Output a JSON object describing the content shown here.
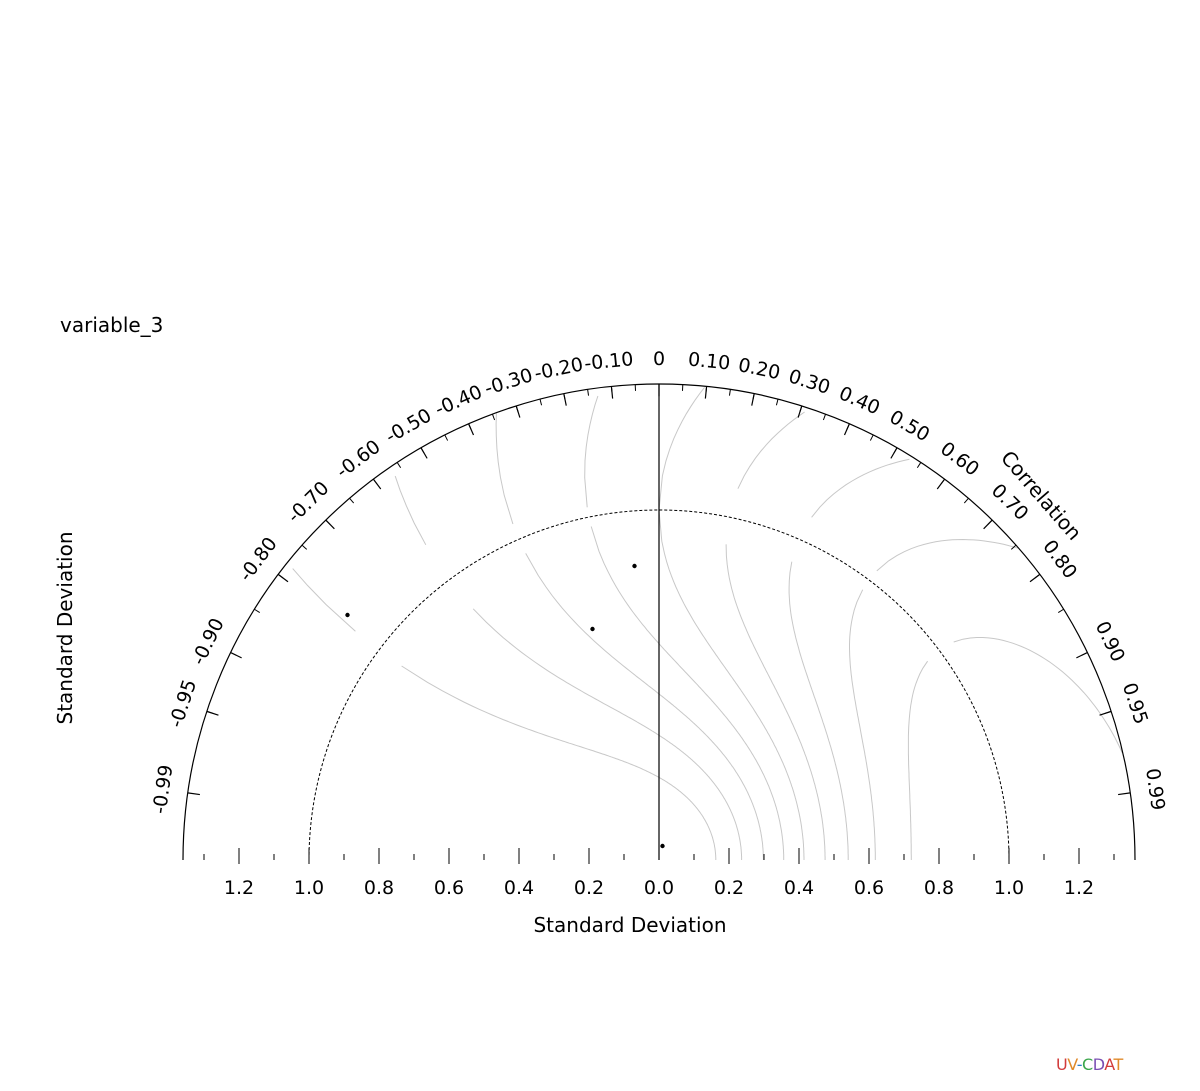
{
  "chart_data": {
    "type": "scatter",
    "subtype": "taylor-diagram",
    "title": "variable_3",
    "xlabel": "Standard Deviation",
    "ylabel": "Standard Deviation",
    "correlation_label": "Correlation",
    "std_max": 1.36,
    "reference_std": 1.0,
    "std_ticks": [
      0.2,
      0.4,
      0.6,
      0.8,
      1.0,
      1.2
    ],
    "std_tick_labels_negative": [
      "1.2",
      "1.0",
      "0.8",
      "0.6",
      "0.4",
      "0.2",
      "0.0"
    ],
    "std_tick_labels_positive": [
      "0.2",
      "0.4",
      "0.6",
      "0.8",
      "1.0",
      "1.2"
    ],
    "correlation_ticks": [
      {
        "value": -0.99,
        "label": "-0.99"
      },
      {
        "value": -0.95,
        "label": "-0.95"
      },
      {
        "value": -0.9,
        "label": "-0.90"
      },
      {
        "value": -0.8,
        "label": "-0.80"
      },
      {
        "value": -0.7,
        "label": "-0.70"
      },
      {
        "value": -0.6,
        "label": "-0.60"
      },
      {
        "value": -0.5,
        "label": "-0.50"
      },
      {
        "value": -0.4,
        "label": "-0.40"
      },
      {
        "value": -0.3,
        "label": "-0.30"
      },
      {
        "value": -0.2,
        "label": "-0.20"
      },
      {
        "value": -0.1,
        "label": "-0.10"
      },
      {
        "value": 0.0,
        "label": "0"
      },
      {
        "value": 0.1,
        "label": "0.10"
      },
      {
        "value": 0.2,
        "label": "0.20"
      },
      {
        "value": 0.3,
        "label": "0.30"
      },
      {
        "value": 0.4,
        "label": "0.40"
      },
      {
        "value": 0.5,
        "label": "0.50"
      },
      {
        "value": 0.6,
        "label": "0.60"
      },
      {
        "value": 0.7,
        "label": "0.70"
      },
      {
        "value": 0.8,
        "label": "0.80"
      },
      {
        "value": 0.9,
        "label": "0.90"
      },
      {
        "value": 0.95,
        "label": "0.95"
      },
      {
        "value": 0.99,
        "label": "0.99"
      }
    ],
    "skill_contours": [
      0.1,
      0.2,
      0.3,
      0.4,
      0.5,
      0.6,
      0.7,
      0.8,
      0.9
    ],
    "points": [
      {
        "x": -0.89,
        "y": 0.7
      },
      {
        "x": -0.19,
        "y": 0.66
      },
      {
        "x": -0.07,
        "y": 0.84
      },
      {
        "x": 0.01,
        "y": 0.04
      }
    ]
  },
  "logo": {
    "text": "UV-CDAT",
    "colors": [
      "#d23b3b",
      "#e08a2a",
      "#2a7cc7",
      "#3aa64a",
      "#7a4fb3"
    ]
  }
}
